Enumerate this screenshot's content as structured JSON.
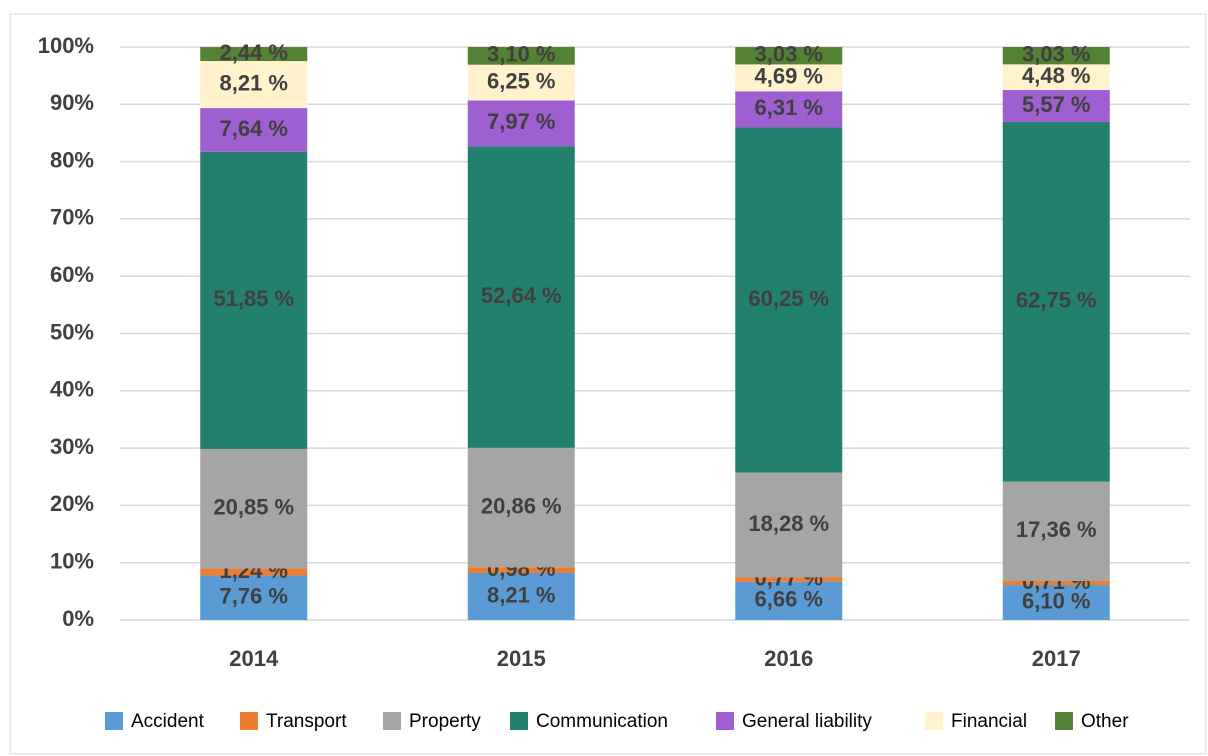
{
  "chart_data": {
    "type": "stacked_bar",
    "categories": [
      "2014",
      "2015",
      "2016",
      "2017"
    ],
    "series": [
      {
        "name": "Accident",
        "color": "#5b9bd5",
        "values": [
          7.76,
          8.21,
          6.66,
          6.1
        ],
        "value_labels": [
          "7,76 %",
          "8,21 %",
          "6,66 %",
          "6,10 %"
        ]
      },
      {
        "name": "Transport",
        "color": "#ed7d31",
        "values": [
          1.24,
          0.98,
          0.77,
          0.71
        ],
        "value_labels": [
          "1,24 %",
          "0,98 %",
          "0,77 %",
          "0,71 %"
        ]
      },
      {
        "name": "Property",
        "color": "#a5a5a5",
        "values": [
          20.85,
          20.86,
          18.28,
          17.36
        ],
        "value_labels": [
          "20,85 %",
          "20,86 %",
          "18,28 %",
          "17,36 %"
        ]
      },
      {
        "name": "Communication",
        "color": "#237f6e",
        "values": [
          51.85,
          52.64,
          60.25,
          62.75
        ],
        "value_labels": [
          "51,85 %",
          "52,64 %",
          "60,25 %",
          "62,75 %"
        ]
      },
      {
        "name": "General liability",
        "color": "#9e5fd0",
        "values": [
          7.64,
          7.97,
          6.31,
          5.57
        ],
        "value_labels": [
          "7,64 %",
          "7,97 %",
          "6,31 %",
          "5,57 %"
        ]
      },
      {
        "name": "Financial",
        "color": "#fff2cc",
        "values": [
          8.21,
          6.25,
          4.69,
          4.48
        ],
        "value_labels": [
          "8,21 %",
          "6,25 %",
          "4,69 %",
          "4,48 %"
        ]
      },
      {
        "name": "Other",
        "color": "#548235",
        "values": [
          2.44,
          3.1,
          3.03,
          3.03
        ],
        "value_labels": [
          "2,44 %",
          "3,10 %",
          "3,03 %",
          "3,03 %"
        ]
      }
    ],
    "ylim": [
      0,
      100
    ],
    "yticks": [
      {
        "value": 0,
        "label": "0%"
      },
      {
        "value": 10,
        "label": "10%"
      },
      {
        "value": 20,
        "label": "20%"
      },
      {
        "value": 30,
        "label": "30%"
      },
      {
        "value": 40,
        "label": "40%"
      },
      {
        "value": 50,
        "label": "50%"
      },
      {
        "value": 60,
        "label": "60%"
      },
      {
        "value": 70,
        "label": "70%"
      },
      {
        "value": 80,
        "label": "80%"
      },
      {
        "value": 90,
        "label": "90%"
      },
      {
        "value": 100,
        "label": "100%"
      }
    ],
    "grid": true,
    "legend": "bottom"
  }
}
